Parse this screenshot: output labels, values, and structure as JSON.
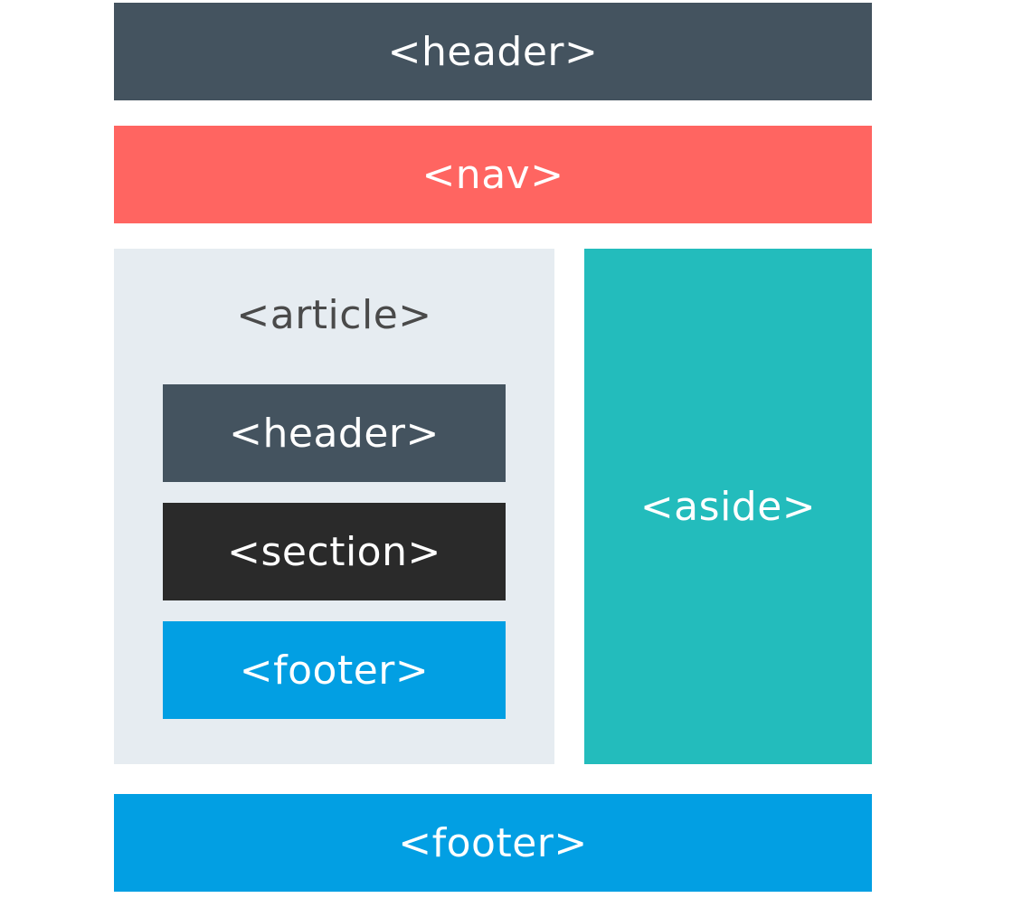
{
  "colors": {
    "header": "#44535f",
    "nav": "#ff6561",
    "article_bg": "#e6ecf1",
    "article_text": "#4a4a4a",
    "section": "#2a2a2a",
    "footer": "#029fe3",
    "aside": "#23bcbc"
  },
  "page": {
    "header_label": "<header>",
    "nav_label": "<nav>",
    "aside_label": "<aside>",
    "footer_label": "<footer>"
  },
  "article": {
    "title": "<article>",
    "header_label": "<header>",
    "section_label": "<section>",
    "footer_label": "<footer>"
  }
}
